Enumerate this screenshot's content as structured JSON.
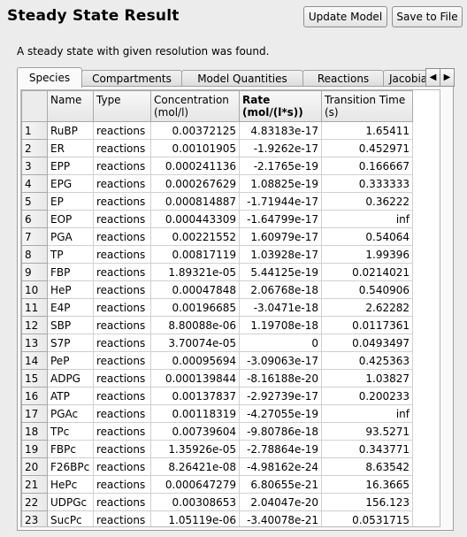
{
  "title": "Steady State Result",
  "buttons": {
    "update": "Update Model",
    "save": "Save to File"
  },
  "status": "A steady state with given resolution was found.",
  "tabs": [
    "Species",
    "Compartments",
    "Model Quantities",
    "Reactions",
    "Jacobian (Complete)"
  ],
  "tab_scroll": {
    "left": "◀",
    "right": "▶"
  },
  "table": {
    "headers": [
      "Name",
      "Type",
      "Concentration\n(mol/l)",
      "Rate\n(mol/(l*s))",
      "Transition Time\n(s)"
    ],
    "rows": [
      [
        "1",
        "RuBP",
        "reactions",
        "0.00372125",
        "4.83183e-17",
        "1.65411"
      ],
      [
        "2",
        "ER",
        "reactions",
        "0.00101905",
        "-1.9262e-17",
        "0.452971"
      ],
      [
        "3",
        "EPP",
        "reactions",
        "0.000241136",
        "-2.1765e-19",
        "0.166667"
      ],
      [
        "4",
        "EPG",
        "reactions",
        "0.000267629",
        "1.08825e-19",
        "0.333333"
      ],
      [
        "5",
        "EP",
        "reactions",
        "0.000814887",
        "-1.71944e-17",
        "0.36222"
      ],
      [
        "6",
        "EOP",
        "reactions",
        "0.000443309",
        "-1.64799e-17",
        "inf"
      ],
      [
        "7",
        "PGA",
        "reactions",
        "0.00221552",
        "1.60979e-17",
        "0.54064"
      ],
      [
        "8",
        "TP",
        "reactions",
        "0.00817119",
        "1.03928e-17",
        "1.99396"
      ],
      [
        "9",
        "FBP",
        "reactions",
        "1.89321e-05",
        "5.44125e-19",
        "0.0214021"
      ],
      [
        "10",
        "HeP",
        "reactions",
        "0.00047848",
        "2.06768e-18",
        "0.540906"
      ],
      [
        "11",
        "E4P",
        "reactions",
        "0.00196685",
        "-3.0471e-18",
        "2.62282"
      ],
      [
        "12",
        "SBP",
        "reactions",
        "8.80088e-06",
        "1.19708e-18",
        "0.0117361"
      ],
      [
        "13",
        "S7P",
        "reactions",
        "3.70074e-05",
        "0",
        "0.0493497"
      ],
      [
        "14",
        "PeP",
        "reactions",
        "0.00095694",
        "-3.09063e-17",
        "0.425363"
      ],
      [
        "15",
        "ADPG",
        "reactions",
        "0.000139844",
        "-8.16188e-20",
        "1.03827"
      ],
      [
        "16",
        "ATP",
        "reactions",
        "0.00137837",
        "-2.92739e-17",
        "0.200233"
      ],
      [
        "17",
        "PGAc",
        "reactions",
        "0.00118319",
        "-4.27055e-19",
        "inf"
      ],
      [
        "18",
        "TPc",
        "reactions",
        "0.00739604",
        "-9.80786e-18",
        "93.5271"
      ],
      [
        "19",
        "FBPc",
        "reactions",
        "1.35926e-05",
        "-2.78864e-19",
        "0.343771"
      ],
      [
        "20",
        "F26BPc",
        "reactions",
        "8.26421e-08",
        "-4.98162e-24",
        "8.63542"
      ],
      [
        "21",
        "HePc",
        "reactions",
        "0.000647279",
        "6.80655e-21",
        "16.3665"
      ],
      [
        "22",
        "UDPGc",
        "reactions",
        "0.00308653",
        "2.04047e-20",
        "156.123"
      ],
      [
        "23",
        "SucPc",
        "reactions",
        "1.05119e-06",
        "-3.40078e-21",
        "0.0531715"
      ]
    ]
  }
}
